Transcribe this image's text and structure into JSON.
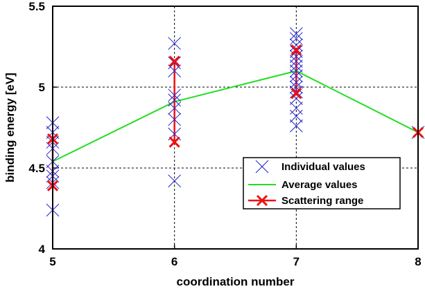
{
  "chart_data": {
    "type": "scatter",
    "title": "",
    "xlabel": "coordination number",
    "ylabel": "binding energy [eV]",
    "xlim": [
      5,
      8
    ],
    "ylim": [
      4,
      5.5
    ],
    "x_ticks": [
      5,
      6,
      7,
      8
    ],
    "y_ticks": [
      4,
      4.5,
      5,
      5.5
    ],
    "x_tick_labels": [
      "5",
      "6",
      "7",
      "8"
    ],
    "y_tick_labels": [
      "4",
      "4.5",
      "5",
      "5.5"
    ],
    "grid": true,
    "legend_position": "bottom-right",
    "series": [
      {
        "name": "Individual values",
        "kind": "marker-x",
        "color": "#2222cc",
        "points": [
          {
            "x": 5,
            "y": 4.24
          },
          {
            "x": 5,
            "y": 4.41
          },
          {
            "x": 5,
            "y": 4.45
          },
          {
            "x": 5,
            "y": 4.48
          },
          {
            "x": 5,
            "y": 4.54
          },
          {
            "x": 5,
            "y": 4.62
          },
          {
            "x": 5,
            "y": 4.66
          },
          {
            "x": 5,
            "y": 4.72
          },
          {
            "x": 5,
            "y": 4.78
          },
          {
            "x": 6,
            "y": 4.42
          },
          {
            "x": 6,
            "y": 4.71
          },
          {
            "x": 6,
            "y": 4.8
          },
          {
            "x": 6,
            "y": 4.87
          },
          {
            "x": 6,
            "y": 4.92
          },
          {
            "x": 6,
            "y": 4.95
          },
          {
            "x": 6,
            "y": 5.1
          },
          {
            "x": 6,
            "y": 5.15
          },
          {
            "x": 6,
            "y": 5.27
          },
          {
            "x": 7,
            "y": 4.76
          },
          {
            "x": 7,
            "y": 4.82
          },
          {
            "x": 7,
            "y": 4.87
          },
          {
            "x": 7,
            "y": 4.93
          },
          {
            "x": 7,
            "y": 4.97
          },
          {
            "x": 7,
            "y": 5.0
          },
          {
            "x": 7,
            "y": 5.03
          },
          {
            "x": 7,
            "y": 5.07
          },
          {
            "x": 7,
            "y": 5.1
          },
          {
            "x": 7,
            "y": 5.13
          },
          {
            "x": 7,
            "y": 5.16
          },
          {
            "x": 7,
            "y": 5.19
          },
          {
            "x": 7,
            "y": 5.22
          },
          {
            "x": 7,
            "y": 5.26
          },
          {
            "x": 7,
            "y": 5.3
          },
          {
            "x": 7,
            "y": 5.33
          },
          {
            "x": 8,
            "y": 4.72
          }
        ]
      },
      {
        "name": "Average values",
        "kind": "line",
        "color": "#22dd22",
        "points": [
          {
            "x": 5,
            "y": 4.54
          },
          {
            "x": 6,
            "y": 4.91
          },
          {
            "x": 7,
            "y": 5.1
          },
          {
            "x": 8,
            "y": 4.72
          }
        ]
      },
      {
        "name": "Scattering range",
        "kind": "range",
        "color": "#ee1111",
        "ranges": [
          {
            "x": 5,
            "min": 4.39,
            "max": 4.68
          },
          {
            "x": 6,
            "min": 4.66,
            "max": 5.16
          },
          {
            "x": 7,
            "min": 4.96,
            "max": 5.23
          },
          {
            "x": 8,
            "min": 4.72,
            "max": 4.72
          }
        ]
      }
    ]
  }
}
